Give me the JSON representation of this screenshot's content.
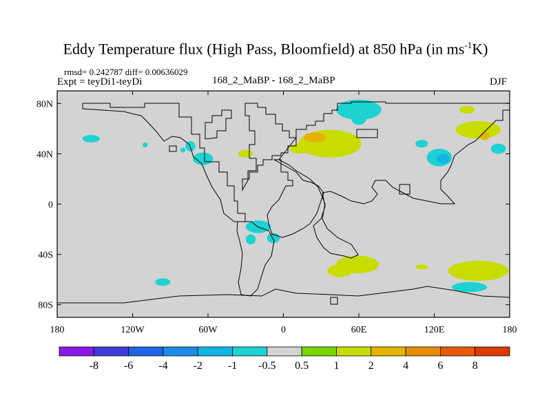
{
  "title": {
    "main": "Eddy Temperature flux (High Pass, Bloomfield) at 850 hPa (in ms",
    "sup": "-1",
    "tail": "K)"
  },
  "header": {
    "stats": "rmsd= 0.242787 diff= 0.00636029",
    "expt": "Expt = teyDi1-teyDi",
    "center": "168_2_MaBP - 168_2_MaBP",
    "season": "DJF"
  },
  "chart_data": {
    "type": "heatmap",
    "projection": "cylindrical-equidistant",
    "xlim": [
      -180,
      180
    ],
    "ylim": [
      -90,
      90
    ],
    "x_ticks": [
      {
        "value": -180,
        "label": "180"
      },
      {
        "value": -120,
        "label": "120W"
      },
      {
        "value": -60,
        "label": "60W"
      },
      {
        "value": 0,
        "label": "0"
      },
      {
        "value": 60,
        "label": "60E"
      },
      {
        "value": 120,
        "label": "120E"
      },
      {
        "value": 180,
        "label": "180"
      }
    ],
    "y_ticks": [
      {
        "value": 80,
        "label": "80N"
      },
      {
        "value": 40,
        "label": "40N"
      },
      {
        "value": 0,
        "label": "0"
      },
      {
        "value": -40,
        "label": "40S"
      },
      {
        "value": -80,
        "label": "80S"
      }
    ],
    "background_color": "#d3d3d3",
    "colorbar": {
      "levels": [
        "-8",
        "-6",
        "-4",
        "-2",
        "-1",
        "-0.5",
        "0.5",
        "1",
        "2",
        "4",
        "6",
        "8"
      ],
      "colors": [
        "#8a19e6",
        "#3c3cdc",
        "#1e64e6",
        "#1e8ce6",
        "#14b4e6",
        "#1ed2d2",
        "#d3d3d3",
        "#78d700",
        "#c8dc00",
        "#e6b400",
        "#e68c00",
        "#e65a00",
        "#dc3c00"
      ]
    },
    "anomalies": [
      {
        "lon": -153,
        "lat": 52,
        "rlon": 7,
        "rlat": 3,
        "value": -1
      },
      {
        "lon": -64,
        "lat": 36,
        "rlon": 8,
        "rlat": 5,
        "value": -1
      },
      {
        "lon": -74,
        "lat": 46,
        "rlon": 4,
        "rlat": 4,
        "value": -1
      },
      {
        "lon": -110,
        "lat": 47,
        "rlon": 2,
        "rlat": 2,
        "value": -1
      },
      {
        "lon": -80,
        "lat": 43,
        "rlon": 2,
        "rlat": 2,
        "value": -1
      },
      {
        "lon": -30,
        "lat": 40,
        "rlon": 6,
        "rlat": 3,
        "value": 1
      },
      {
        "lon": 37,
        "lat": 48,
        "rlon": 25,
        "rlat": 11,
        "value": 1
      },
      {
        "lon": 25,
        "lat": 53,
        "rlon": 9,
        "rlat": 4,
        "value": 2
      },
      {
        "lon": 13,
        "lat": 44,
        "rlon": 8,
        "rlat": 4,
        "value": 1
      },
      {
        "lon": 60,
        "lat": 75,
        "rlon": 18,
        "rlat": 8,
        "value": -1
      },
      {
        "lon": 60,
        "lat": 68,
        "rlon": 6,
        "rlat": 5,
        "value": -1
      },
      {
        "lon": 110,
        "lat": 48,
        "rlon": 5,
        "rlat": 3,
        "value": -1
      },
      {
        "lon": 124,
        "lat": 37,
        "rlon": 10,
        "rlat": 7,
        "value": -1
      },
      {
        "lon": 127,
        "lat": 36,
        "rlon": 5,
        "rlat": 4,
        "value": -2
      },
      {
        "lon": 155,
        "lat": 59,
        "rlon": 18,
        "rlat": 7,
        "value": 1
      },
      {
        "lon": 160,
        "lat": 54,
        "rlon": 4,
        "rlat": 3,
        "value": 2
      },
      {
        "lon": 171,
        "lat": 44,
        "rlon": 6,
        "rlat": 4,
        "value": -1
      },
      {
        "lon": 146,
        "lat": 75,
        "rlon": 6,
        "rlat": 3,
        "value": 1
      },
      {
        "lon": -20,
        "lat": -18,
        "rlon": 10,
        "rlat": 5,
        "value": -1
      },
      {
        "lon": -8,
        "lat": -27,
        "rlon": 5,
        "rlat": 4,
        "value": -1
      },
      {
        "lon": -26,
        "lat": -28,
        "rlon": 4,
        "rlat": 4,
        "value": -1
      },
      {
        "lon": -96,
        "lat": -62,
        "rlon": 6,
        "rlat": 3,
        "value": -1
      },
      {
        "lon": 59,
        "lat": -48,
        "rlon": 17,
        "rlat": 7,
        "value": 1
      },
      {
        "lon": 45,
        "lat": -53,
        "rlon": 10,
        "rlat": 5,
        "value": 1
      },
      {
        "lon": 155,
        "lat": -53,
        "rlon": 24,
        "rlat": 8,
        "value": 1
      },
      {
        "lon": 148,
        "lat": -66,
        "rlon": 14,
        "rlat": 4,
        "value": -1
      },
      {
        "lon": 110,
        "lat": -50,
        "rlon": 5,
        "rlat": 2,
        "value": 1
      }
    ]
  }
}
